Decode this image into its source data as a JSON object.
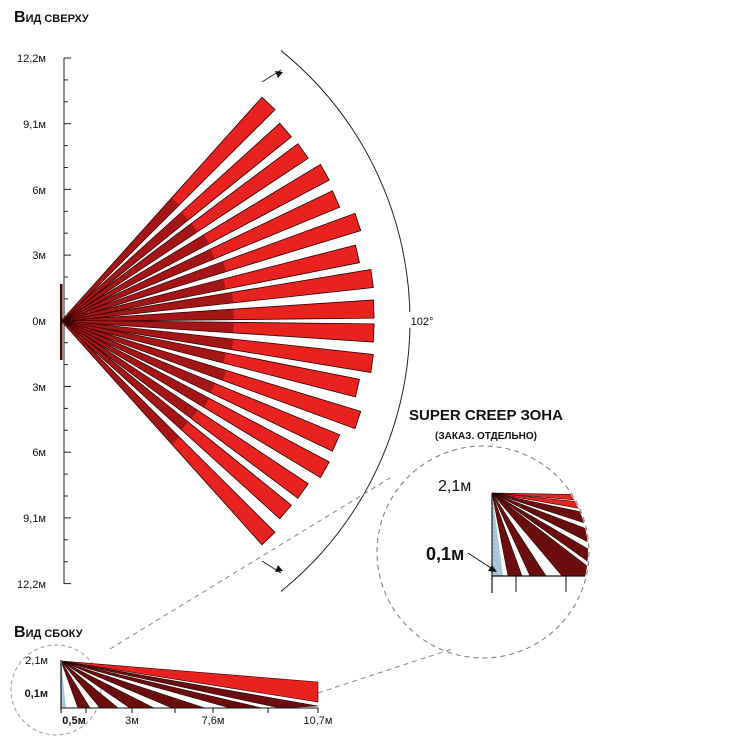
{
  "top_view": {
    "title_cap": "В",
    "title_rest": "ИД СВЕРХУ",
    "axis_labels": [
      "12,2м",
      "9,1м",
      "6м",
      "3м",
      "0м",
      "3м",
      "6м",
      "9,1м",
      "12,2м"
    ],
    "angle_label": "102°",
    "beam_count": 18
  },
  "creep_zone": {
    "title": "SUPER CREEP ЗОНА",
    "subtitle": "(ЗАКАЗ. ОТДЕЛЬНО)",
    "height_label": "2,1м",
    "low_label": "0,1м"
  },
  "side_view": {
    "title_cap": "В",
    "title_rest": "ИД СБОКУ",
    "height_label": "2,1м",
    "low_label": "0,1м",
    "distance_labels": [
      "0,5м",
      "3м",
      "7,6м",
      "10,7м"
    ]
  },
  "colors": {
    "beam_red": "#e8231f",
    "beam_dark": "#6b0d0d",
    "creep_blue": "#a9c7d6"
  }
}
